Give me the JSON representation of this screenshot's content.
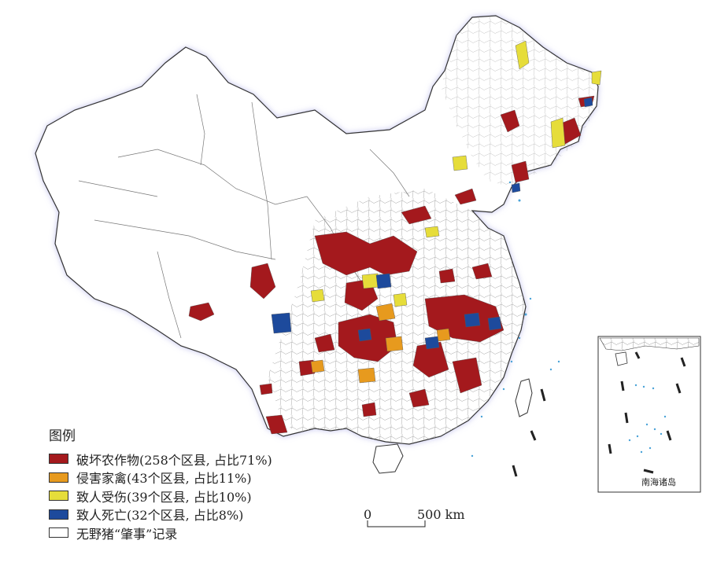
{
  "legend": {
    "title": "图例",
    "items": [
      {
        "label": "破坏农作物(258个区县, 占比71%)",
        "color": "#a4191d"
      },
      {
        "label": "侵害家禽(43个区县, 占比11%)",
        "color": "#e79a1e"
      },
      {
        "label": "致人受伤(39个区县, 占比10%)",
        "color": "#e6dd3a"
      },
      {
        "label": "致人死亡(32个区县, 占比8%)",
        "color": "#1d4a9c"
      },
      {
        "label": "无野猪“肇事”记录",
        "color": "#ffffff"
      }
    ]
  },
  "scale_bar": {
    "start_label": "0",
    "end_label": "500 km"
  },
  "inset": {
    "label": "南海诸岛"
  },
  "colors": {
    "land": "#ffffff",
    "border": "#444444",
    "coast_glow": "#c8c8ee",
    "sea_islands": "#4aa3d8"
  }
}
